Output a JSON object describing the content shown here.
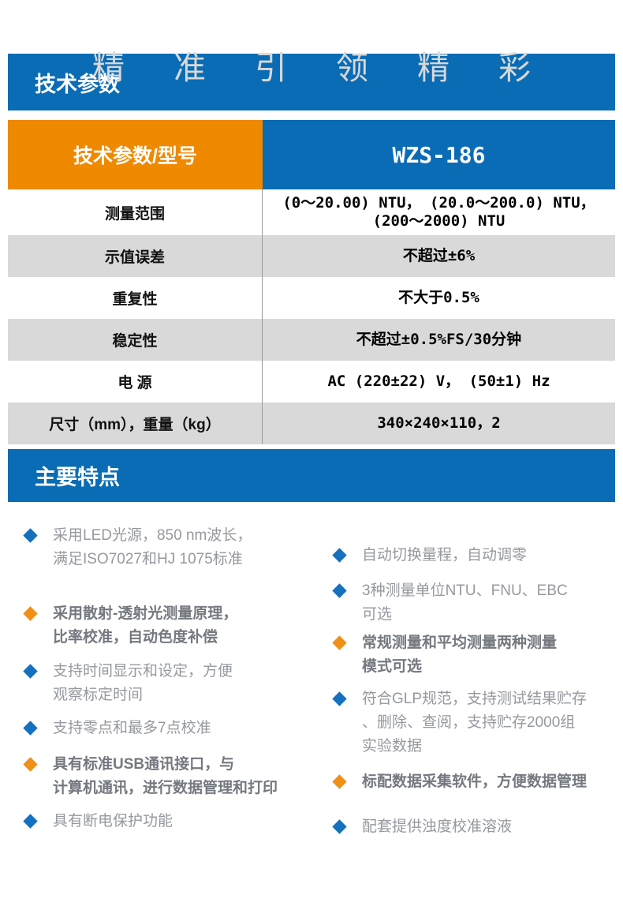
{
  "watermark": "精准引领精彩",
  "tech_section": {
    "title": "技术参数"
  },
  "features_section": {
    "title": "主要特点"
  },
  "spec_table": {
    "header": {
      "param_label": "技术参数/型号",
      "model": "WZS-186"
    },
    "rows": [
      {
        "label": "测量范围",
        "value": "(0～20.00) NTU， (20.0～200.0) NTU，",
        "value_line2": "(200～2000) NTU"
      },
      {
        "label": "示值误差",
        "value": "不超过±6%"
      },
      {
        "label": "重复性",
        "value": "不大于0.5%"
      },
      {
        "label": "稳定性",
        "value": "不超过±0.5%FS/30分钟"
      },
      {
        "label": "电 源",
        "value": "AC (220±22) V， (50±1) Hz"
      },
      {
        "label": "尺寸（mm），重量（kg）",
        "value": "340×240×110，2"
      }
    ]
  },
  "features": {
    "left": [
      {
        "lines": [
          "采用LED光源，850 nm波长，",
          "满足ISO7027和HJ 1075标准"
        ],
        "accent": "blue",
        "bold": false
      },
      {
        "lines": [
          "采用散射-透射光测量原理，",
          "比率校准，自动色度补偿"
        ],
        "accent": "orange",
        "bold": true
      },
      {
        "lines": [
          "支持时间显示和设定，方便",
          "观察标定时间"
        ],
        "accent": "blue",
        "bold": false
      },
      {
        "lines": [
          "支持零点和最多7点校准"
        ],
        "accent": "blue",
        "bold": false
      },
      {
        "lines": [
          "具有标准USB通讯接口，与",
          "计算机通讯，进行数据管理和打印"
        ],
        "accent": "orange",
        "bold": true
      },
      {
        "lines": [
          "具有断电保护功能"
        ],
        "accent": "blue",
        "bold": false
      }
    ],
    "right": [
      {
        "lines": [
          "自动切换量程，自动调零"
        ],
        "accent": "blue",
        "bold": false
      },
      {
        "lines": [
          "3种测量单位NTU、FNU、EBC",
          "可选"
        ],
        "accent": "blue",
        "bold": false
      },
      {
        "lines": [
          "常规测量和平均测量两种测量",
          "模式可选"
        ],
        "accent": "orange",
        "bold": true
      },
      {
        "lines": [
          "符合GLP规范，支持测试结果贮存",
          "、删除、查阅，支持贮存2000组",
          "实验数据"
        ],
        "accent": "blue",
        "bold": false
      },
      {
        "lines": [
          "标配数据采集软件，方便数据管理"
        ],
        "accent": "orange",
        "bold": true
      },
      {
        "lines": [
          "配套提供浊度校准溶液"
        ],
        "accent": "blue",
        "bold": false
      }
    ]
  },
  "colors": {
    "primary_blue": "#0a6cb5",
    "header_orange": "#ee8900",
    "row_gray": "#d9d9d9",
    "divider_gray": "#999999",
    "diamond_blue": "#1570be",
    "diamond_orange": "#ef9018",
    "feature_text": "#95999e",
    "feature_text_bold": "#74797f",
    "watermark_gray": "#d8d8d8"
  }
}
